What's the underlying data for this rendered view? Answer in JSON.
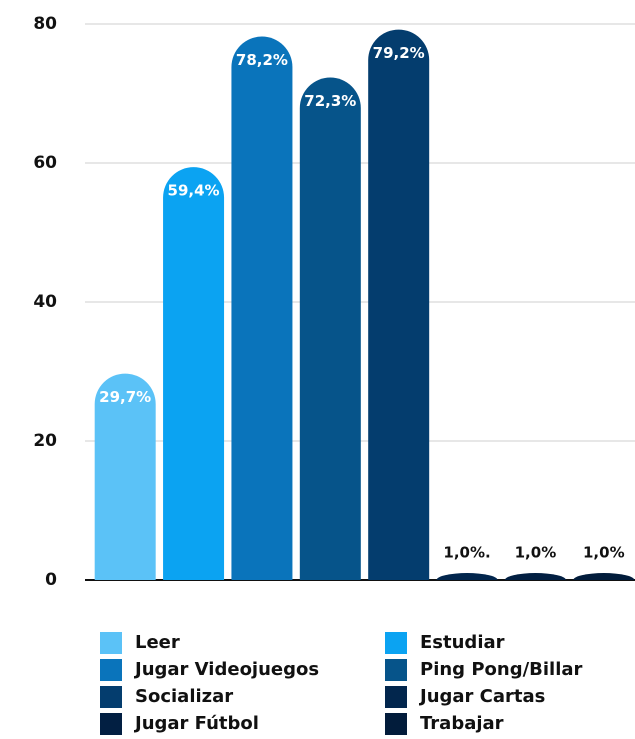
{
  "chart_data": {
    "type": "bar",
    "categories": [
      "Leer",
      "Estudiar",
      "Jugar Videojuegos",
      "Ping Pong/Billar",
      "Socializar",
      "Jugar Cartas",
      "Jugar Fútbol",
      "Trabajar"
    ],
    "values": [
      29.7,
      59.4,
      78.2,
      72.3,
      79.2,
      1.0,
      1.0,
      1.0
    ],
    "value_labels": [
      "29,7%",
      "59,4%",
      "78,2%",
      "72,3%",
      "79,2%",
      "1,0%.",
      "1,0%",
      "1,0%"
    ],
    "colors": [
      "#5bc2f7",
      "#0ba3f2",
      "#0a74bb",
      "#06548a",
      "#043d6e",
      "#02264d",
      "#021f42",
      "#021c3b"
    ],
    "ylim": [
      0,
      80
    ],
    "yticks": [
      0,
      20,
      40,
      60,
      80
    ],
    "grid": true,
    "legend": "bottom"
  }
}
